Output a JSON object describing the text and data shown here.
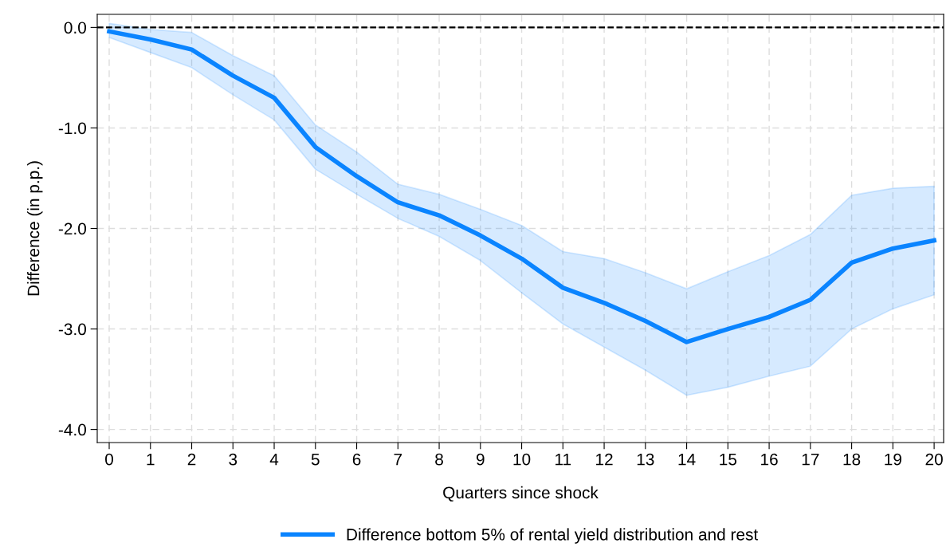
{
  "chart_data": {
    "type": "line",
    "xlabel": "Quarters since shock",
    "ylabel": "Difference (in p.p.)",
    "x": [
      0,
      1,
      2,
      3,
      4,
      5,
      6,
      7,
      8,
      9,
      10,
      11,
      12,
      13,
      14,
      15,
      16,
      17,
      18,
      19,
      20
    ],
    "series": [
      {
        "name": "Difference bottom 5% of rental yield distribution and rest",
        "color": "#0a84ff",
        "values": [
          -0.04,
          -0.12,
          -0.22,
          -0.48,
          -0.7,
          -1.19,
          -1.48,
          -1.74,
          -1.87,
          -2.07,
          -2.3,
          -2.59,
          -2.74,
          -2.92,
          -3.13,
          -3.0,
          -2.88,
          -2.71,
          -2.34,
          -2.2,
          -2.12
        ],
        "upper": [
          0.04,
          -0.02,
          -0.05,
          -0.28,
          -0.48,
          -0.97,
          -1.24,
          -1.56,
          -1.66,
          -1.81,
          -1.97,
          -2.23,
          -2.3,
          -2.44,
          -2.6,
          -2.43,
          -2.27,
          -2.06,
          -1.67,
          -1.6,
          -1.58
        ],
        "lower": [
          -0.1,
          -0.25,
          -0.4,
          -0.67,
          -0.92,
          -1.41,
          -1.66,
          -1.9,
          -2.08,
          -2.32,
          -2.64,
          -2.95,
          -3.18,
          -3.41,
          -3.66,
          -3.58,
          -3.47,
          -3.37,
          -3.0,
          -2.8,
          -2.66
        ]
      }
    ],
    "xlim": [
      -0.29,
      20.23
    ],
    "xticks": [
      0,
      1,
      2,
      3,
      4,
      5,
      6,
      7,
      8,
      9,
      10,
      11,
      12,
      13,
      14,
      15,
      16,
      17,
      18,
      19,
      20
    ],
    "ylim": [
      -4.13,
      0.13
    ],
    "yticks": [
      {
        "value": 0,
        "label": "0.0"
      },
      {
        "value": -1,
        "label": "-1.0"
      },
      {
        "value": -2,
        "label": "-2.0"
      },
      {
        "value": -3,
        "label": "-3.0"
      },
      {
        "value": -4,
        "label": "-4.0"
      }
    ],
    "ref_lines": [
      {
        "axis": "y",
        "value": 0,
        "color": "#000000",
        "line_style": "dashed"
      }
    ],
    "grid": true,
    "legend": "bottom",
    "line_style": "solid",
    "marker": "none"
  }
}
